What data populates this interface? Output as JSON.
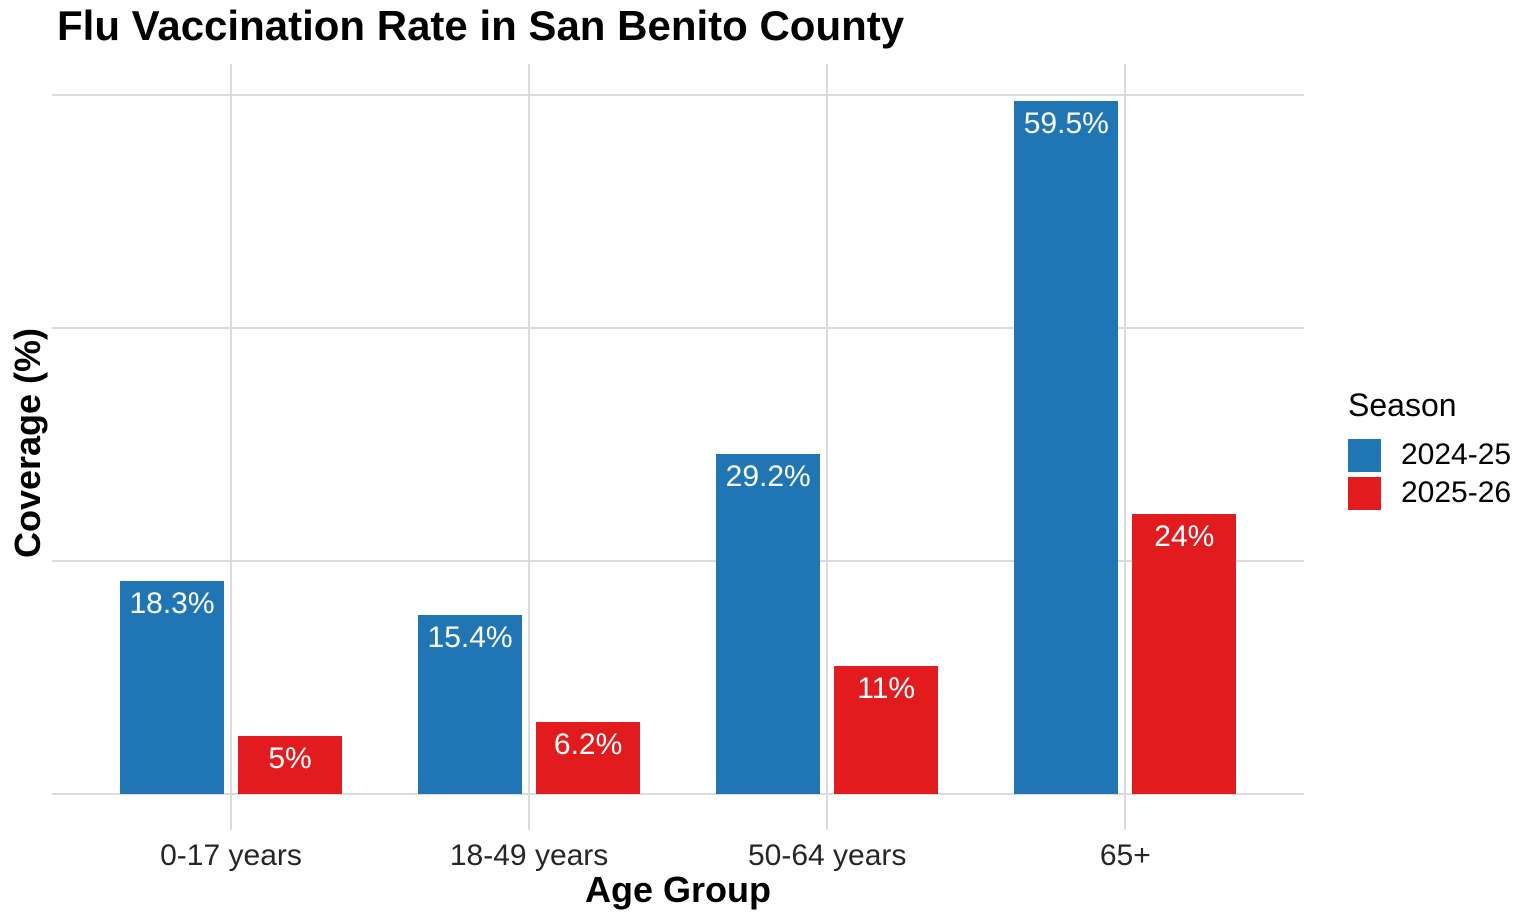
{
  "chart_data": {
    "type": "bar",
    "title": "Flu Vaccination Rate in San Benito County",
    "xlabel": "Age Group",
    "ylabel": "Coverage (%)",
    "categories": [
      "0-17 years",
      "18-49 years",
      "50-64 years",
      "65+"
    ],
    "series": [
      {
        "name": "2024-25",
        "color": "#2076B4",
        "values": [
          18.3,
          15.4,
          29.2,
          59.5
        ],
        "labels": [
          "18.3%",
          "15.4%",
          "29.2%",
          "59.5%"
        ]
      },
      {
        "name": "2025-26",
        "color": "#E21B1E",
        "values": [
          5,
          6.2,
          11,
          24
        ],
        "labels": [
          "5%",
          "6.2%",
          "11%",
          "24%"
        ]
      }
    ],
    "ylim": [
      0,
      62.7
    ],
    "y_gridlines": [
      0,
      20,
      40,
      60
    ],
    "grid": true,
    "grid_color": "#DBDBDB",
    "bar_label_color": "#FFFFFF",
    "legend": {
      "title": "Season",
      "position": "right"
    }
  }
}
